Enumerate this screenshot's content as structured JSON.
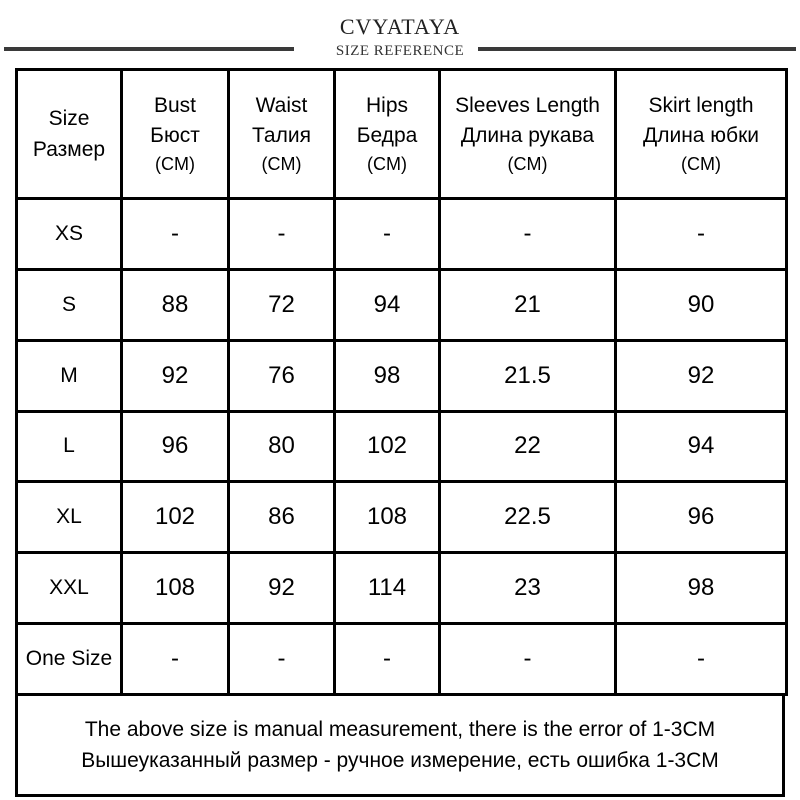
{
  "header": {
    "brand": "CVYATAYA",
    "subtitle": "SIZE  REFERENCE"
  },
  "table": {
    "size_header": [
      "Size",
      "Размер"
    ],
    "columns": [
      {
        "en": "Bust",
        "ru": "Бюст",
        "unit": "(CM)"
      },
      {
        "en": "Waist",
        "ru": "Талия",
        "unit": "(CM)"
      },
      {
        "en": "Hips",
        "ru": "Бедра",
        "unit": "(CM)"
      },
      {
        "en": "Sleeves Length",
        "ru": "Длина рукава",
        "unit": "(CM)"
      },
      {
        "en": "Skirt length",
        "ru": "Длина юбки",
        "unit": "(CM)"
      }
    ],
    "rows": [
      {
        "size": "XS",
        "values": [
          "-",
          "-",
          "-",
          "-",
          "-"
        ]
      },
      {
        "size": "S",
        "values": [
          "88",
          "72",
          "94",
          "21",
          "90"
        ]
      },
      {
        "size": "M",
        "values": [
          "92",
          "76",
          "98",
          "21.5",
          "92"
        ]
      },
      {
        "size": "L",
        "values": [
          "96",
          "80",
          "102",
          "22",
          "94"
        ]
      },
      {
        "size": "XL",
        "values": [
          "102",
          "86",
          "108",
          "22.5",
          "96"
        ]
      },
      {
        "size": "XXL",
        "values": [
          "108",
          "92",
          "114",
          "23",
          "98"
        ]
      },
      {
        "size": "One Size",
        "values": [
          "-",
          "-",
          "-",
          "-",
          "-"
        ]
      }
    ]
  },
  "note": {
    "line_en": "The above size is manual measurement, there is the error of 1-3CM",
    "line_ru": "Вышеуказанный размер - ручное измерение, есть ошибка 1-3CM"
  }
}
